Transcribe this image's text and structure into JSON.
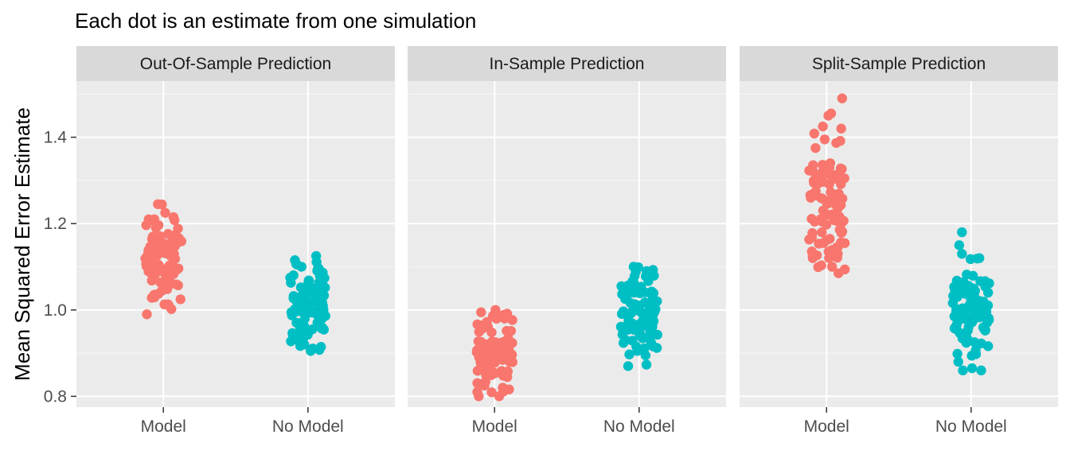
{
  "chart_data": {
    "type": "scatter",
    "title": "Each dot is an estimate from one simulation",
    "ylabel": "Mean Squared Error Estimate",
    "xlabel": "",
    "ylim": [
      0.775,
      1.53
    ],
    "yticks": [
      0.8,
      1.0,
      1.2,
      1.4
    ],
    "ytick_labels": [
      "0.8",
      "1.0",
      "1.2",
      "1.4"
    ],
    "categories": [
      "Model",
      "No Model"
    ],
    "grid": true,
    "legend": "none",
    "colors": {
      "Model": "#F8766D",
      "No Model": "#00BFC4"
    },
    "panels": [
      {
        "strip": "Out-Of-Sample Prediction",
        "groups": [
          {
            "category": "Model",
            "n": 100,
            "center": 1.11,
            "spread": 0.05,
            "min": 0.99,
            "max": 1.245,
            "extremes": [
              [
                -0.9,
                0.99
              ],
              [
                -0.3,
                1.245
              ],
              [
                0.1,
                1.225
              ],
              [
                0.55,
                1.215
              ],
              [
                -0.8,
                1.21
              ],
              [
                0.3,
                1.01
              ]
            ]
          },
          {
            "category": "No Model",
            "n": 100,
            "center": 1.005,
            "spread": 0.045,
            "min": 0.905,
            "max": 1.125,
            "extremes": [
              [
                0.45,
                1.125
              ],
              [
                -0.6,
                1.105
              ],
              [
                -0.35,
                1.1
              ],
              [
                0.15,
                0.905
              ],
              [
                -0.2,
                0.92
              ]
            ]
          }
        ]
      },
      {
        "strip": "In-Sample Prediction",
        "groups": [
          {
            "category": "Model",
            "n": 100,
            "center": 0.895,
            "spread": 0.04,
            "min": 0.8,
            "max": 1.0,
            "extremes": [
              [
                -0.55,
                0.825
              ],
              [
                0.05,
                1.0
              ],
              [
                0.55,
                0.98
              ],
              [
                0.25,
                0.8
              ],
              [
                0.45,
                0.82
              ]
            ]
          },
          {
            "category": "No Model",
            "n": 100,
            "center": 0.995,
            "spread": 0.04,
            "min": 0.87,
            "max": 1.1,
            "extremes": [
              [
                -0.6,
                0.87
              ],
              [
                0.35,
                0.895
              ],
              [
                -0.3,
                1.1
              ],
              [
                0.55,
                1.08
              ],
              [
                -0.1,
                0.905
              ]
            ]
          }
        ]
      },
      {
        "strip": "Split-Sample Prediction",
        "groups": [
          {
            "category": "Model",
            "n": 100,
            "center": 1.245,
            "spread": 0.075,
            "min": 1.085,
            "max": 1.49,
            "extremes": [
              [
                0.85,
                1.49
              ],
              [
                0.25,
                1.455
              ],
              [
                0.1,
                1.45
              ],
              [
                0.8,
                1.42
              ],
              [
                -0.2,
                1.425
              ],
              [
                -0.1,
                1.395
              ],
              [
                -0.6,
                1.375
              ],
              [
                0.3,
                1.1
              ],
              [
                0.65,
                1.085
              ],
              [
                -0.75,
                1.12
              ]
            ]
          },
          {
            "category": "No Model",
            "n": 100,
            "center": 1.0,
            "spread": 0.055,
            "min": 0.86,
            "max": 1.18,
            "extremes": [
              [
                -0.5,
                1.18
              ],
              [
                -0.65,
                1.15
              ],
              [
                -0.5,
                1.13
              ],
              [
                0.45,
                1.12
              ],
              [
                -0.45,
                0.86
              ],
              [
                0.05,
                0.865
              ],
              [
                0.55,
                0.86
              ],
              [
                -0.7,
                0.88
              ]
            ]
          }
        ]
      }
    ]
  }
}
